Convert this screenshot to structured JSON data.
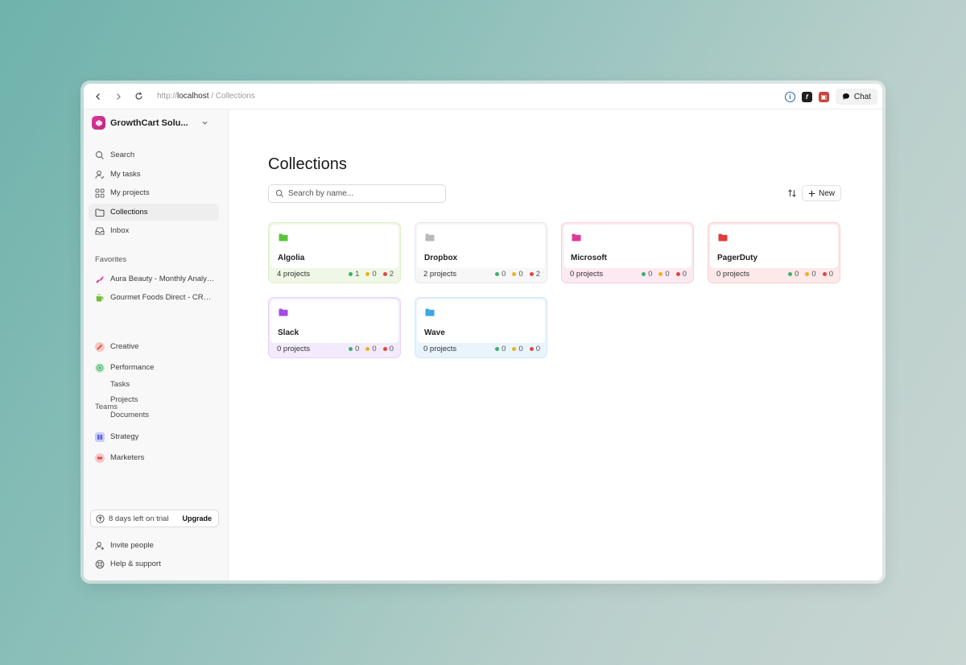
{
  "browser": {
    "url_scheme": "http://",
    "url_host": "localhost",
    "url_path": " / Collections",
    "chat_label": "Chat"
  },
  "sidebar": {
    "workspace_name": "GrowthCart Solu...",
    "nav": [
      {
        "label": "Search",
        "icon": "search-icon"
      },
      {
        "label": "My tasks",
        "icon": "user-check-icon"
      },
      {
        "label": "My projects",
        "icon": "grid-icon"
      },
      {
        "label": "Collections",
        "icon": "folder-icon"
      },
      {
        "label": "Inbox",
        "icon": "inbox-icon"
      }
    ],
    "favorites_label": "Favorites",
    "favorites": [
      {
        "label": "Aura Beauty - Monthly Analytics",
        "icon": "lipstick-icon"
      },
      {
        "label": "Gourmet Foods Direct - CRO Audit",
        "icon": "cup-icon"
      }
    ],
    "teams_label": "Teams",
    "teams": [
      {
        "label": "Creative",
        "color": "#e8635a"
      },
      {
        "label": "Performance",
        "color": "#3fae5c"
      },
      {
        "label": "Strategy",
        "color": "#6b6ee8"
      },
      {
        "label": "Marketers",
        "color": "#e86060"
      }
    ],
    "performance_sub": [
      "Tasks",
      "Projects",
      "Documents"
    ],
    "trial_text": "8 days left on trial",
    "upgrade_label": "Upgrade",
    "invite_label": "Invite people",
    "help_label": "Help & support"
  },
  "main": {
    "title": "Collections",
    "search_placeholder": "Search by name...",
    "new_label": "New"
  },
  "collections": [
    {
      "name": "Algolia",
      "projects": "4 projects",
      "green": "1",
      "yellow": "0",
      "red": "2",
      "folder_color": "#5cc43a",
      "border": "#dcefc9",
      "bg": "#eff8e6"
    },
    {
      "name": "Dropbox",
      "projects": "2 projects",
      "green": "0",
      "yellow": "0",
      "red": "2",
      "folder_color": "#b9b9b9",
      "border": "#e6e6e6",
      "bg": "#f7f7f7"
    },
    {
      "name": "Microsoft",
      "projects": "0 projects",
      "green": "0",
      "yellow": "0",
      "red": "0",
      "folder_color": "#e0389a",
      "border": "#f6cfe0",
      "bg": "#fde9f1"
    },
    {
      "name": "PagerDuty",
      "projects": "0 projects",
      "green": "0",
      "yellow": "0",
      "red": "0",
      "folder_color": "#e23b3b",
      "border": "#f6d0d0",
      "bg": "#fde9e9"
    },
    {
      "name": "Slack",
      "projects": "0 projects",
      "green": "0",
      "yellow": "0",
      "red": "0",
      "folder_color": "#a24be6",
      "border": "#e6d3f6",
      "bg": "#f4eafd"
    },
    {
      "name": "Wave",
      "projects": "0 projects",
      "green": "0",
      "yellow": "0",
      "red": "0",
      "folder_color": "#3aa6e6",
      "border": "#d3e6f6",
      "bg": "#eaf4fd"
    }
  ],
  "status_colors": {
    "green": "#3fae6e",
    "yellow": "#e6b422",
    "red": "#e04646"
  }
}
